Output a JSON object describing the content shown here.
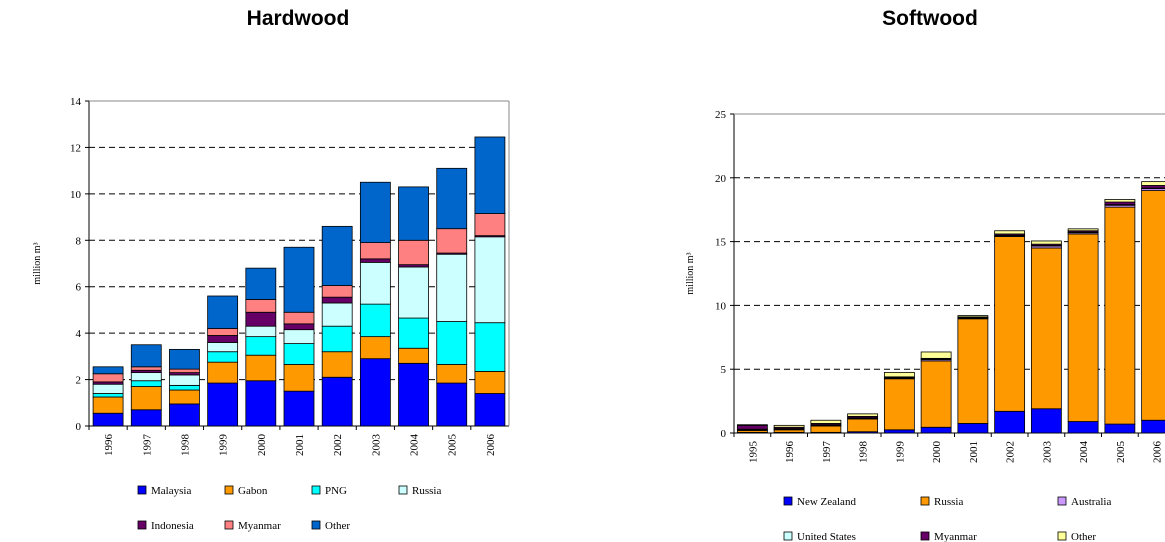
{
  "chart_data": [
    {
      "type": "bar",
      "stacked": true,
      "title": "Hardwood",
      "ylabel": "million m³",
      "xlabel": "",
      "ylim": [
        0,
        14
      ],
      "yticks": [
        0,
        2,
        4,
        6,
        8,
        10,
        12,
        14
      ],
      "grid": "horizontal-dashed",
      "legend_position": "bottom",
      "categories": [
        "1996",
        "1997",
        "1998",
        "1999",
        "2000",
        "2001",
        "2002",
        "2003",
        "2004",
        "2005",
        "2006"
      ],
      "series": [
        {
          "name": "Malaysia",
          "color": "#0000ff",
          "values": [
            0.55,
            0.7,
            0.95,
            1.85,
            1.95,
            1.5,
            2.1,
            2.9,
            2.7,
            1.85,
            1.4
          ]
        },
        {
          "name": "Gabon",
          "color": "#ff9900",
          "values": [
            0.7,
            1.0,
            0.6,
            0.9,
            1.1,
            1.15,
            1.1,
            0.95,
            0.65,
            0.8,
            0.95
          ]
        },
        {
          "name": "PNG",
          "color": "#00ffff",
          "values": [
            0.15,
            0.25,
            0.2,
            0.45,
            0.8,
            0.9,
            1.1,
            1.4,
            1.3,
            1.85,
            2.1
          ]
        },
        {
          "name": "Russia",
          "color": "#ccffff",
          "values": [
            0.4,
            0.35,
            0.45,
            0.4,
            0.45,
            0.6,
            1.0,
            1.8,
            2.2,
            2.9,
            3.7
          ]
        },
        {
          "name": "Indonesia",
          "color": "#660066",
          "values": [
            0.1,
            0.1,
            0.1,
            0.3,
            0.6,
            0.25,
            0.25,
            0.15,
            0.1,
            0.05,
            0.05
          ]
        },
        {
          "name": "Myanmar",
          "color": "#ff8080",
          "values": [
            0.35,
            0.15,
            0.15,
            0.3,
            0.55,
            0.5,
            0.5,
            0.7,
            1.05,
            1.05,
            0.95
          ]
        },
        {
          "name": "Other",
          "color": "#0066cc",
          "values": [
            0.3,
            0.95,
            0.85,
            1.4,
            1.35,
            2.8,
            2.55,
            2.6,
            2.3,
            2.6,
            3.3
          ]
        }
      ]
    },
    {
      "type": "bar",
      "stacked": true,
      "title": "Softwood",
      "ylabel": "million m³",
      "xlabel": "",
      "ylim": [
        0,
        25
      ],
      "yticks": [
        0,
        5,
        10,
        15,
        20,
        25
      ],
      "grid": "horizontal-dashed",
      "legend_position": "bottom",
      "categories": [
        "1995",
        "1996",
        "1997",
        "1998",
        "1999",
        "2000",
        "2001",
        "2002",
        "2003",
        "2004",
        "2005",
        "2006"
      ],
      "series": [
        {
          "name": "New Zealand",
          "color": "#0000ff",
          "values": [
            0.05,
            0.05,
            0.05,
            0.1,
            0.25,
            0.45,
            0.75,
            1.7,
            1.9,
            0.9,
            0.7,
            1.0
          ]
        },
        {
          "name": "Russia",
          "color": "#ff9900",
          "values": [
            0.15,
            0.2,
            0.5,
            1.0,
            4.0,
            5.2,
            8.2,
            13.7,
            12.6,
            14.7,
            17.0,
            18.0
          ]
        },
        {
          "name": "Australia",
          "color": "#cc99ff",
          "values": [
            0.05,
            0.05,
            0.05,
            0.05,
            0.05,
            0.1,
            0.05,
            0.05,
            0.15,
            0.1,
            0.15,
            0.15
          ]
        },
        {
          "name": "United States",
          "color": "#ccffff",
          "values": [
            0.05,
            0.05,
            0.05,
            0.05,
            0.05,
            0.05,
            0.05,
            0.05,
            0.05,
            0.05,
            0.05,
            0.05
          ]
        },
        {
          "name": "Myanmar",
          "color": "#660066",
          "values": [
            0.3,
            0.1,
            0.1,
            0.1,
            0.05,
            0.05,
            0.05,
            0.1,
            0.1,
            0.1,
            0.2,
            0.2
          ]
        },
        {
          "name": "Other",
          "color": "#ffff99",
          "values": [
            0.05,
            0.15,
            0.25,
            0.2,
            0.35,
            0.5,
            0.1,
            0.25,
            0.25,
            0.15,
            0.2,
            0.3
          ]
        }
      ]
    }
  ]
}
